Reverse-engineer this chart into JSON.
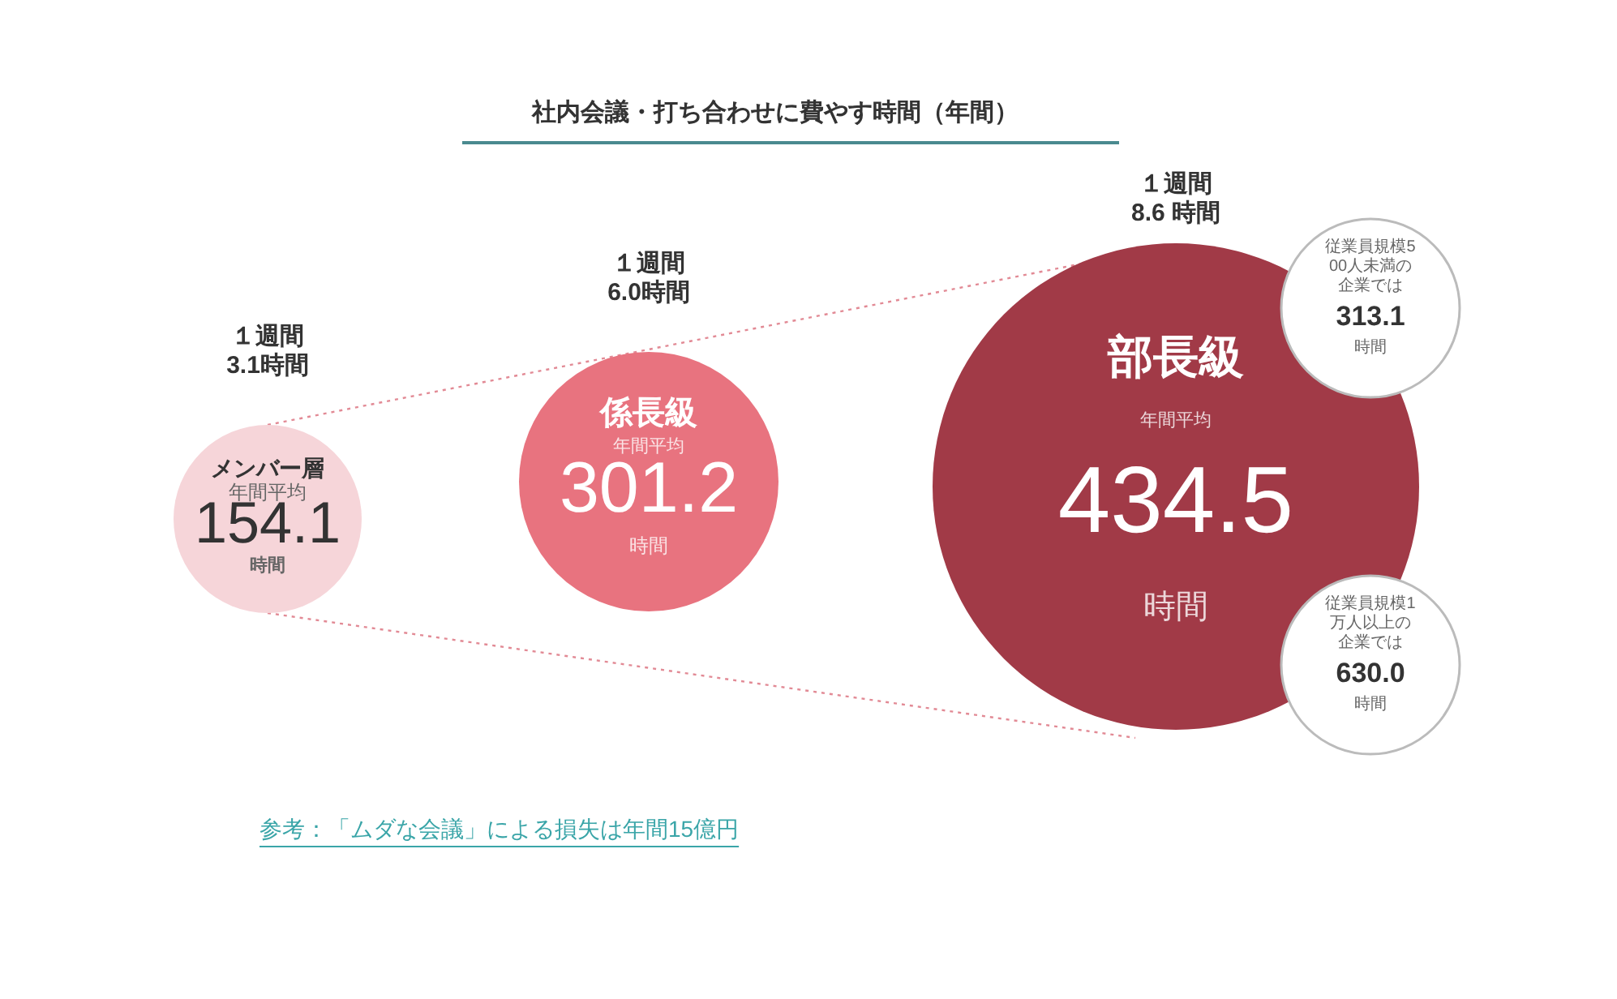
{
  "chart_data": {
    "type": "other",
    "title": "社内会議・打ち合わせに費やす時間（年間）",
    "categories": [
      "メンバー層",
      "係長級",
      "部長級"
    ],
    "values": [
      154.1,
      301.2,
      434.5
    ],
    "colors": [
      "#f6d5d9",
      "#e8737f",
      "#a13a47"
    ],
    "data_labels": true,
    "annotations": [
      {
        "text": "１週間\n3.1時間",
        "x": "メンバー層"
      },
      {
        "text": "１週間\n6.0時間",
        "x": "係長級"
      },
      {
        "text": "１週間\n8.6 時間",
        "x": "部長級"
      },
      {
        "text": "年間平均",
        "x": "メンバー層"
      },
      {
        "text": "年間平均",
        "x": "係長級"
      },
      {
        "text": "年間平均",
        "x": "部長級"
      },
      {
        "text": "時間",
        "x": "メンバー層"
      },
      {
        "text": "時間",
        "x": "係長級"
      },
      {
        "text": "時間",
        "x": "部長級"
      },
      {
        "text": "従業員規模500人未満の企業では\n313.1\n時間",
        "x": "部長級"
      },
      {
        "text": "従業員規模1万人以上の企業では\n630.0\n時間",
        "x": "部長級"
      },
      "参考：「ムダな会議」による損失は年間15億円"
    ]
  }
}
